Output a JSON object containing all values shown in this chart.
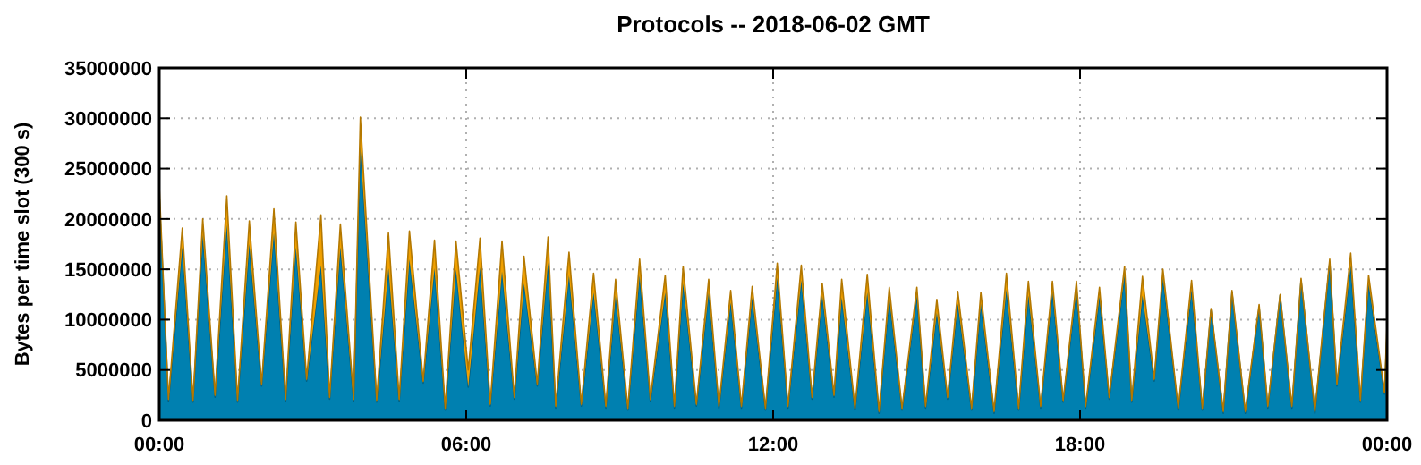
{
  "chart_data": {
    "type": "area",
    "title": "Protocols -- 2018-06-02 GMT",
    "ylabel": "Bytes per time slot (300 s)",
    "stacked": true,
    "grid": true,
    "xlim": [
      0,
      24
    ],
    "ylim": [
      0,
      35000000
    ],
    "xticks": [
      {
        "value": 0,
        "label": "00:00"
      },
      {
        "value": 6,
        "label": "06:00"
      },
      {
        "value": 12,
        "label": "12:00"
      },
      {
        "value": 18,
        "label": "18:00"
      },
      {
        "value": 24,
        "label": "00:00"
      }
    ],
    "yticks": [
      0,
      5000000,
      10000000,
      15000000,
      20000000,
      25000000,
      30000000,
      35000000
    ],
    "x": [
      0,
      0.18,
      0.45,
      0.66,
      0.85,
      1.09,
      1.32,
      1.53,
      1.76,
      2.0,
      2.24,
      2.47,
      2.67,
      2.88,
      3.16,
      3.33,
      3.54,
      3.8,
      3.93,
      4.25,
      4.48,
      4.69,
      4.89,
      5.16,
      5.38,
      5.59,
      5.8,
      6.04,
      6.27,
      6.47,
      6.7,
      6.94,
      7.13,
      7.39,
      7.6,
      7.75,
      8.01,
      8.25,
      8.49,
      8.73,
      8.92,
      9.16,
      9.39,
      9.6,
      9.89,
      10.07,
      10.24,
      10.5,
      10.74,
      10.94,
      11.17,
      11.38,
      11.59,
      11.85,
      12.08,
      12.29,
      12.55,
      12.76,
      12.96,
      13.19,
      13.34,
      13.6,
      13.84,
      14.07,
      14.27,
      14.52,
      14.81,
      14.98,
      15.2,
      15.41,
      15.61,
      15.88,
      16.06,
      16.32,
      16.56,
      16.8,
      16.99,
      17.23,
      17.46,
      17.67,
      17.93,
      18.11,
      18.38,
      18.57,
      18.87,
      19.01,
      19.22,
      19.45,
      19.62,
      19.92,
      20.18,
      20.39,
      20.56,
      20.8,
      20.97,
      21.23,
      21.5,
      21.67,
      21.91,
      22.14,
      22.32,
      22.59,
      22.88,
      23.02,
      23.29,
      23.48,
      23.64,
      23.95,
      24
    ],
    "series": [
      {
        "color": "#0080b0",
        "values": [
          22500000,
          1900000,
          17200000,
          1800000,
          18400000,
          2300000,
          19400000,
          1800000,
          17500000,
          3400000,
          18600000,
          1900000,
          17200000,
          3900000,
          15400000,
          2100000,
          17200000,
          1900000,
          27200000,
          1800000,
          15100000,
          1900000,
          16000000,
          3700000,
          15100000,
          1000000,
          15000000,
          3300000,
          15200000,
          1400000,
          14800000,
          2100000,
          13600000,
          3400000,
          15700000,
          1200000,
          14400000,
          1400000,
          12700000,
          1200000,
          12400000,
          1000000,
          14400000,
          1900000,
          12700000,
          1200000,
          13600000,
          1400000,
          12700000,
          1200000,
          11700000,
          1200000,
          12200000,
          1000000,
          14200000,
          1200000,
          13900000,
          2100000,
          12400000,
          2300000,
          12200000,
          1000000,
          12700000,
          700000,
          12200000,
          1000000,
          12400000,
          1200000,
          10700000,
          2100000,
          11600000,
          1000000,
          11600000,
          700000,
          13000000,
          1000000,
          12400000,
          1200000,
          12800000,
          1800000,
          13000000,
          1200000,
          12300000,
          2100000,
          14500000,
          1800000,
          12400000,
          3900000,
          14200000,
          1000000,
          13000000,
          1000000,
          10900000,
          700000,
          12700000,
          700000,
          11200000,
          1200000,
          12400000,
          1200000,
          13900000,
          700000,
          15700000,
          3400000,
          15400000,
          1800000,
          13600000,
          2600000,
          8600000
        ]
      },
      {
        "color": "#f0a000",
        "values": [
          800000,
          200000,
          1900000,
          200000,
          1600000,
          200000,
          2900000,
          200000,
          2300000,
          200000,
          2400000,
          200000,
          2500000,
          200000,
          5000000,
          200000,
          2300000,
          200000,
          2900000,
          200000,
          3500000,
          200000,
          2800000,
          200000,
          2800000,
          200000,
          2800000,
          1700000,
          2900000,
          200000,
          3000000,
          200000,
          2700000,
          200000,
          2500000,
          200000,
          2300000,
          200000,
          1900000,
          200000,
          1600000,
          200000,
          1600000,
          200000,
          1700000,
          200000,
          1700000,
          200000,
          1300000,
          200000,
          1200000,
          200000,
          1100000,
          200000,
          1400000,
          200000,
          1500000,
          200000,
          1200000,
          200000,
          1800000,
          200000,
          1800000,
          200000,
          1000000,
          200000,
          800000,
          200000,
          1300000,
          200000,
          1200000,
          200000,
          1100000,
          200000,
          1600000,
          200000,
          1400000,
          200000,
          1000000,
          200000,
          800000,
          200000,
          900000,
          200000,
          800000,
          200000,
          1900000,
          200000,
          800000,
          200000,
          900000,
          200000,
          200000,
          200000,
          200000,
          200000,
          300000,
          200000,
          100000,
          200000,
          200000,
          200000,
          300000,
          200000,
          1200000,
          200000,
          800000,
          200000,
          900000
        ]
      }
    ]
  }
}
